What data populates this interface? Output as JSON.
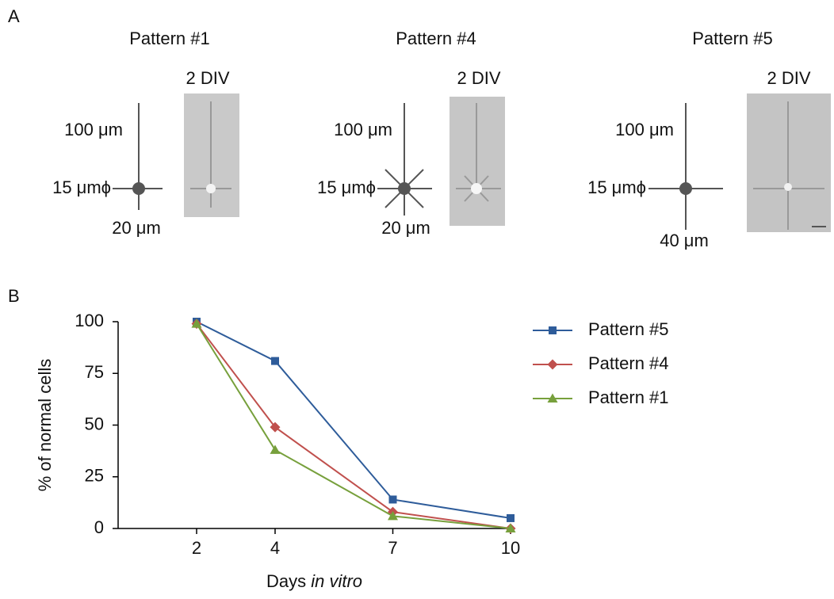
{
  "panel_labels": [
    "A",
    "B"
  ],
  "panel_a": {
    "patterns": [
      {
        "title": "Pattern #1",
        "div": "2 DIV",
        "length": "100 μm",
        "soma": "15 μmϕ",
        "neurite": "20 μm"
      },
      {
        "title": "Pattern #4",
        "div": "2 DIV",
        "length": "100 μm",
        "soma": "15 μmϕ",
        "neurite": "20 μm"
      },
      {
        "title": "Pattern #5",
        "div": "2 DIV",
        "length": "100 μm",
        "soma": "15 μmϕ",
        "neurite": "40 μm"
      }
    ]
  },
  "chart_data": {
    "type": "line",
    "x_label": [
      "Days",
      "in vitro"
    ],
    "y_label": "% of normal cells",
    "x": [
      2,
      4,
      7,
      10
    ],
    "xlim": [
      0,
      10
    ],
    "xticks": [
      2,
      4,
      7,
      10
    ],
    "ylim": [
      0,
      100
    ],
    "yticks": [
      0,
      25,
      50,
      75,
      100
    ],
    "series": [
      {
        "name": "Pattern #5",
        "color": "#2e5c9a",
        "marker": "square",
        "values": [
          100,
          81,
          14,
          5
        ]
      },
      {
        "name": "Pattern #4",
        "color": "#c0504d",
        "marker": "diamond",
        "values": [
          99,
          49,
          8,
          0
        ]
      },
      {
        "name": "Pattern #1",
        "color": "#77a03c",
        "marker": "triangle",
        "values": [
          99,
          38,
          6,
          0
        ]
      }
    ]
  }
}
